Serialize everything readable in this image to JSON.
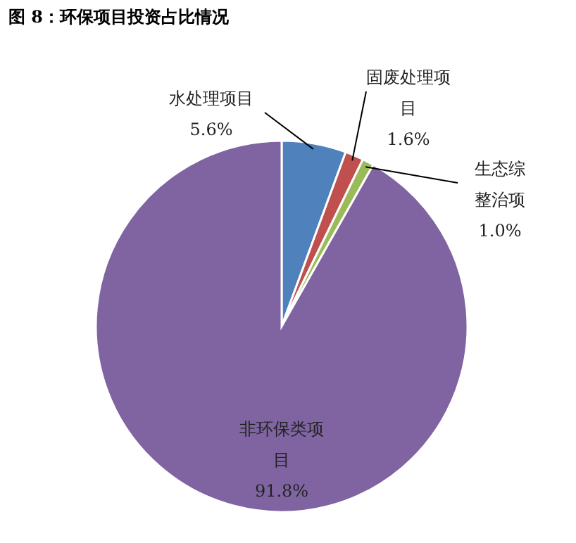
{
  "chart_data": {
    "type": "pie",
    "title": "图 8：环保项目投资占比情况",
    "categories": [
      "水处理项目",
      "固废处理项目",
      "生态综整治项",
      "非环保类项目"
    ],
    "values": [
      5.6,
      1.6,
      1.0,
      91.8
    ],
    "colors": [
      "#4f81bd",
      "#c0504d",
      "#9bbb59",
      "#8064a2"
    ],
    "value_labels": [
      "5.6%",
      "1.6%",
      "1.0%",
      "91.8%"
    ]
  }
}
